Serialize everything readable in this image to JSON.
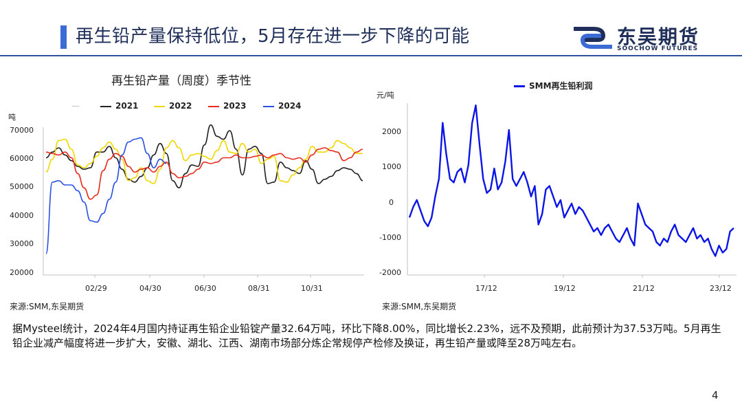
{
  "header": {
    "title": "再生铅产量保持低位，5月存在进一步下降的可能",
    "logo_cn": "东吴期货",
    "logo_en": "SOOCHOW FUTURES",
    "accent_color": "#3d6bd6",
    "brand_color": "#1f2f5a"
  },
  "chart_data": [
    {
      "type": "line",
      "title": "再生铅产量（周度）季节性",
      "ylabel": "吨",
      "ylim": [
        20000,
        70000
      ],
      "yticks": [
        "70000",
        "60000",
        "50000",
        "40000",
        "30000",
        "20000"
      ],
      "xticks": [
        "02/29",
        "04/30",
        "06/30",
        "08/31",
        "10/31"
      ],
      "legend": [
        "—",
        "2021",
        "2022",
        "2023",
        "2024"
      ],
      "source": "来源:SMM,东吴期货",
      "series": [
        {
          "name": "2021",
          "color": "#222222",
          "values": [
            60500,
            62500,
            64000,
            61500,
            59500,
            57500,
            56500,
            57000,
            62500,
            62500,
            64500,
            60500,
            56500,
            53000,
            52000,
            54000,
            57000,
            61500,
            65500,
            62000,
            52500,
            50000,
            55000,
            58000,
            57500,
            65000,
            72000,
            68000,
            67000,
            70000,
            63500,
            54500,
            63500,
            64500,
            62000,
            51500,
            52000,
            59000,
            57000,
            56000,
            55000,
            59500,
            56500,
            51500,
            53000,
            54000,
            56000,
            57000,
            56500,
            55000,
            52500
          ]
        },
        {
          "name": "2022",
          "color": "#f2d600",
          "values": [
            55500,
            60000,
            66500,
            67000,
            63500,
            58000,
            57000,
            58500,
            61000,
            64000,
            66000,
            63500,
            60000,
            52500,
            53500,
            57000,
            52500,
            51500,
            56500,
            64000,
            66500,
            64000,
            59500,
            61500,
            62000,
            61000,
            60000,
            63000,
            66500,
            62500,
            62000,
            65500,
            62500,
            63500,
            58500,
            60000,
            61000,
            52500,
            52000,
            54500,
            57000,
            60000,
            64500,
            62500,
            62500,
            64000,
            66500,
            65500,
            64000,
            62000,
            62000
          ]
        },
        {
          "name": "2023",
          "color": "#e8291c",
          "values": [
            62500,
            62000,
            61500,
            62500,
            60500,
            55000,
            50000,
            46000,
            47500,
            56000,
            60000,
            62000,
            61000,
            57500,
            55500,
            56500,
            57000,
            55500,
            57500,
            59000,
            55000,
            53500,
            54000,
            55000,
            56500,
            59000,
            58500,
            59000,
            60500,
            60500,
            61500,
            60500,
            60500,
            61000,
            61500,
            60500,
            61500,
            62000,
            60500,
            60000,
            60500,
            59000,
            61500,
            63500,
            64000,
            63000,
            62500,
            59500,
            60500,
            62500,
            63500
          ]
        },
        {
          "name": "2024",
          "color": "#2850e6",
          "values": [
            27000,
            52000,
            52500,
            51000,
            51000,
            49000,
            45000,
            38500,
            38000,
            41000,
            46000,
            52000,
            61500,
            66000,
            67000,
            67500,
            62000,
            57000,
            60000,
            58500
          ]
        }
      ]
    },
    {
      "type": "line",
      "title": "SMM再生铅利润",
      "ylabel": "元/吨",
      "ylim": [
        -2000,
        3000
      ],
      "yticks": [
        "2000",
        "1000",
        "0",
        "-1000",
        "-2000"
      ],
      "xticks": [
        "17/12",
        "19/12",
        "21/12",
        "23/12"
      ],
      "legend": [
        "SMM再生铅利润"
      ],
      "source": "来源:SMM,东吴期货",
      "series": [
        {
          "name": "SMM再生铅利润",
          "color": "#0a14e6",
          "values": [
            -400,
            -100,
            100,
            -200,
            -500,
            -650,
            -400,
            200,
            700,
            2300,
            1400,
            700,
            600,
            900,
            1000,
            600,
            1100,
            2300,
            2800,
            1700,
            700,
            300,
            400,
            1000,
            400,
            600,
            1200,
            2100,
            700,
            500,
            700,
            900,
            600,
            200,
            500,
            -600,
            -300,
            400,
            500,
            200,
            -100,
            100,
            -400,
            -200,
            0,
            -300,
            -100,
            -200,
            -400,
            -600,
            -800,
            -700,
            -900,
            -700,
            -600,
            -800,
            -1000,
            -1100,
            -900,
            -700,
            -1000,
            -1200,
            0,
            -300,
            -600,
            -700,
            -800,
            -1100,
            -1200,
            -1000,
            -1100,
            -800,
            -600,
            -900,
            -1000,
            -1100,
            -900,
            -700,
            -1000,
            -900,
            -1100,
            -1000,
            -1300,
            -1500,
            -1200,
            -1400,
            -1300,
            -800,
            -700
          ]
        }
      ]
    }
  ],
  "body": {
    "text": "据Mysteel统计，2024年4月国内持证再生铅企业铅锭产量32.64万吨，环比下降8.00%，同比增长2.23%，远不及预期，此前预计为37.53万吨。5月再生铅企业减产幅度将进一步扩大，安徽、湖北、江西、湖南市场部分炼企常规停产检修及换证，再生铅产量或降至28万吨左右。"
  },
  "footer": {
    "page_number": "4"
  }
}
